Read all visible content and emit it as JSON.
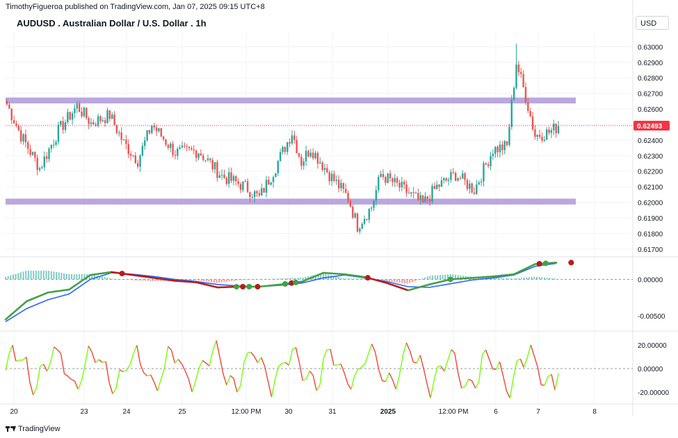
{
  "header": {
    "published": "TimothyFigueroa published on TradingView.com, Jan 07, 2025 09:15 UTC+8",
    "symbol": "AUDUSD . Australian Dollar / U.S. Dollar . 1h",
    "currency": "USD",
    "brand": "TradingView"
  },
  "colors": {
    "up": "#26a69a",
    "down": "#ef5350",
    "zone": "#b39ddb",
    "ma_fast": "#43a047",
    "ma_slow": "#2962ff",
    "ma_down": "#b71c1c",
    "osc_up": "#76ff03",
    "osc_down": "#f44336",
    "last_price": "#f23645"
  },
  "chart_data": [
    {
      "type": "candlestick",
      "title": "AUDUSD . Australian Dollar / U.S. Dollar . 1h",
      "ylim": [
        0.6165,
        0.631
      ],
      "y_ticks": [
        "0.63000",
        "0.62900",
        "0.62800",
        "0.62700",
        "0.62600",
        "0.62500",
        "0.62400",
        "0.62300",
        "0.62200",
        "0.62100",
        "0.62000",
        "0.61900",
        "0.61800",
        "0.61700"
      ],
      "last_price": "0.62493",
      "zones": [
        {
          "low": 0.62645,
          "high": 0.62665
        },
        {
          "low": 0.61995,
          "high": 0.62015
        }
      ],
      "close_path": [
        {
          "i": 0,
          "y": 0.6263
        },
        {
          "i": 6,
          "y": 0.6243
        },
        {
          "i": 14,
          "y": 0.6222
        },
        {
          "i": 22,
          "y": 0.6246
        },
        {
          "i": 30,
          "y": 0.6262
        },
        {
          "i": 36,
          "y": 0.6251
        },
        {
          "i": 44,
          "y": 0.6256
        },
        {
          "i": 50,
          "y": 0.6238
        },
        {
          "i": 56,
          "y": 0.6227
        },
        {
          "i": 62,
          "y": 0.625
        },
        {
          "i": 72,
          "y": 0.6232
        },
        {
          "i": 82,
          "y": 0.6233
        },
        {
          "i": 92,
          "y": 0.6217
        },
        {
          "i": 102,
          "y": 0.621
        },
        {
          "i": 108,
          "y": 0.6203
        },
        {
          "i": 114,
          "y": 0.622
        },
        {
          "i": 122,
          "y": 0.6245
        },
        {
          "i": 126,
          "y": 0.6226
        },
        {
          "i": 130,
          "y": 0.6235
        },
        {
          "i": 138,
          "y": 0.6218
        },
        {
          "i": 146,
          "y": 0.6203
        },
        {
          "i": 150,
          "y": 0.6185
        },
        {
          "i": 156,
          "y": 0.6197
        },
        {
          "i": 160,
          "y": 0.6218
        },
        {
          "i": 170,
          "y": 0.6208
        },
        {
          "i": 178,
          "y": 0.6199
        },
        {
          "i": 184,
          "y": 0.621
        },
        {
          "i": 192,
          "y": 0.6218
        },
        {
          "i": 200,
          "y": 0.6208
        },
        {
          "i": 208,
          "y": 0.6234
        },
        {
          "i": 214,
          "y": 0.6236
        },
        {
          "i": 218,
          "y": 0.629
        },
        {
          "i": 222,
          "y": 0.6268
        },
        {
          "i": 226,
          "y": 0.6243
        },
        {
          "i": 232,
          "y": 0.6245
        },
        {
          "i": 236,
          "y": 0.6249
        }
      ]
    },
    {
      "type": "line",
      "ylim": [
        -0.0069,
        0.0029
      ],
      "y_ticks": [
        "0.00000",
        "-0.00500"
      ],
      "fast": [
        -0.0055,
        -0.003,
        -0.0018,
        -0.0014,
        0.0006,
        0.001,
        0.0006,
        0.0002,
        -0.0002,
        -0.0004,
        -0.0011,
        -0.001,
        -0.001,
        -0.0007,
        -0.0003,
        0.0009,
        0.0007,
        0.0003,
        -0.0005,
        -0.0015,
        -0.0007,
        0.0,
        0.0002,
        0.0004,
        0.0007,
        0.0021,
        0.0023
      ],
      "slow": [
        -0.0058,
        -0.004,
        -0.0028,
        -0.002,
        0.0,
        0.0009,
        0.0007,
        0.0004,
        0.0,
        -0.0003,
        -0.0007,
        -0.0009,
        -0.001,
        -0.0008,
        -0.0005,
        0.0002,
        0.0006,
        0.0002,
        -0.0003,
        -0.001,
        -0.0011,
        -0.0006,
        -0.0001,
        0.0002,
        0.0006,
        0.0018,
        0.0022
      ],
      "signals": [
        {
          "i": 5.5,
          "color": "#b71c1c"
        },
        {
          "i": 10.9,
          "color": "#43a047"
        },
        {
          "i": 11.2,
          "color": "#b71c1c"
        },
        {
          "i": 11.5,
          "color": "#43a047"
        },
        {
          "i": 11.9,
          "color": "#b71c1c"
        },
        {
          "i": 13.2,
          "color": "#43a047"
        },
        {
          "i": 13.5,
          "color": "#b71c1c"
        },
        {
          "i": 13.7,
          "color": "#43a047"
        },
        {
          "i": 17.1,
          "color": "#b71c1c"
        },
        {
          "i": 21.0,
          "color": "#43a047"
        },
        {
          "i": 25.2,
          "color": "#b71c1c"
        },
        {
          "i": 25.5,
          "color": "#43a047"
        },
        {
          "i": 26.7,
          "color": "#b71c1c"
        }
      ]
    },
    {
      "type": "line",
      "ylim": [
        -30,
        30
      ],
      "y_ticks": [
        "20.00000",
        "0.00000",
        "-20.00000"
      ]
    }
  ],
  "x_axis": {
    "labels": [
      "20",
      "23",
      "24",
      "25",
      "12:00 PM",
      "30",
      "31",
      "2025",
      "12:00 PM",
      "6",
      "7",
      "8"
    ]
  }
}
